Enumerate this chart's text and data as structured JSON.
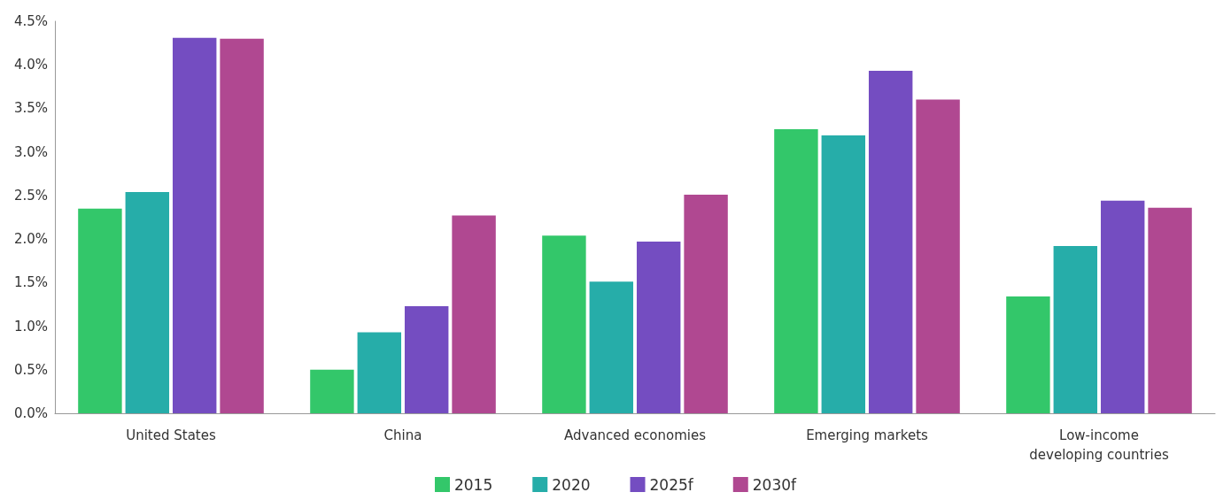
{
  "chart_data": {
    "type": "bar",
    "categories": [
      "United States",
      "China",
      "Advanced economies",
      "Emerging markets",
      "Low-income\ndeveloping countries"
    ],
    "series": [
      {
        "name": "2015",
        "color": "#33c76a",
        "values": [
          2.35,
          0.5,
          2.04,
          3.26,
          1.34
        ]
      },
      {
        "name": "2020",
        "color": "#26ada9",
        "values": [
          2.54,
          0.93,
          1.51,
          3.19,
          1.92
        ]
      },
      {
        "name": "2025f",
        "color": "#744dc1",
        "values": [
          4.31,
          1.23,
          1.97,
          3.93,
          2.44
        ]
      },
      {
        "name": "2030f",
        "color": "#b04891",
        "values": [
          4.3,
          2.27,
          2.51,
          3.6,
          2.36
        ]
      }
    ],
    "ylim": [
      0,
      4.5
    ],
    "yticks": [
      {
        "value": 0,
        "label": "0.0%"
      },
      {
        "value": 0.5,
        "label": "0.5%"
      },
      {
        "value": 1,
        "label": "1.0%"
      },
      {
        "value": 1.5,
        "label": "1.5%"
      },
      {
        "value": 2,
        "label": "2.0%"
      },
      {
        "value": 2.5,
        "label": "2.5%"
      },
      {
        "value": 3,
        "label": "3.0%"
      },
      {
        "value": 3.5,
        "label": "3.5%"
      },
      {
        "value": 4,
        "label": "4.0%"
      },
      {
        "value": 4.5,
        "label": "4.5%"
      }
    ],
    "grid": false,
    "legend": "bottom"
  }
}
